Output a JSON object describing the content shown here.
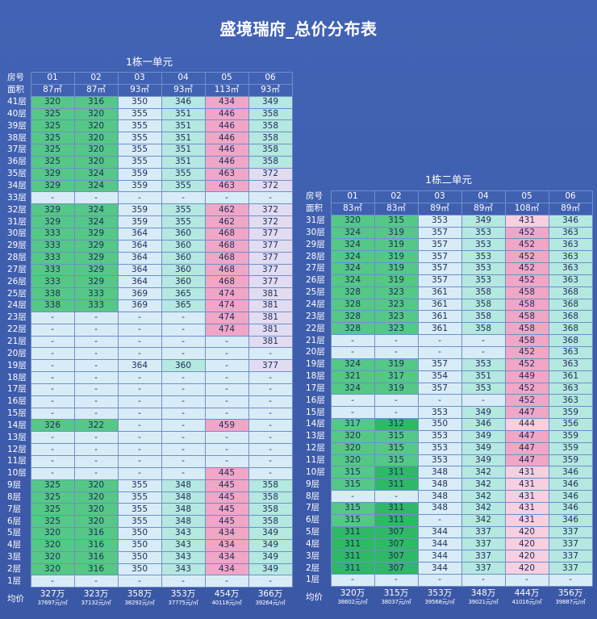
{
  "title": "盛境瑞府_总价分布表",
  "header_labels": {
    "room": "房号",
    "area": "面积",
    "avg": "均价"
  },
  "colors": {
    "background": "#3d5aa8",
    "green_dark": "#2fb866",
    "green": "#55c787",
    "green_light": "#9fe0c2",
    "teal_light": "#b4e8e0",
    "blue_light": "#d8ecf8",
    "pink": "#f0a6c6",
    "pink_light": "#f7cfe0",
    "lavender": "#e2dcf2",
    "empty": "#d8ecf8"
  },
  "chart_data": [
    {
      "type": "table",
      "title": "1栋一单元",
      "columns": [
        "01",
        "02",
        "03",
        "04",
        "05",
        "06"
      ],
      "areas": [
        "87㎡",
        "87㎡",
        "93㎡",
        "93㎡",
        "113㎡",
        "93㎡"
      ],
      "rows": [
        {
          "floor": "41层",
          "values": [
            "320",
            "316",
            "350",
            "346",
            "434",
            "349"
          ]
        },
        {
          "floor": "40层",
          "values": [
            "325",
            "320",
            "355",
            "351",
            "446",
            "358"
          ]
        },
        {
          "floor": "39层",
          "values": [
            "325",
            "320",
            "355",
            "351",
            "446",
            "358"
          ]
        },
        {
          "floor": "38层",
          "values": [
            "325",
            "320",
            "355",
            "351",
            "446",
            "358"
          ]
        },
        {
          "floor": "37层",
          "values": [
            "325",
            "320",
            "355",
            "351",
            "446",
            "358"
          ]
        },
        {
          "floor": "36层",
          "values": [
            "325",
            "320",
            "355",
            "351",
            "446",
            "358"
          ]
        },
        {
          "floor": "35层",
          "values": [
            "329",
            "324",
            "359",
            "355",
            "463",
            "372"
          ]
        },
        {
          "floor": "34层",
          "values": [
            "329",
            "324",
            "359",
            "355",
            "463",
            "372"
          ]
        },
        {
          "floor": "33层",
          "values": [
            "-",
            "-",
            "-",
            "-",
            "-",
            "-"
          ]
        },
        {
          "floor": "32层",
          "values": [
            "329",
            "324",
            "359",
            "355",
            "462",
            "372"
          ]
        },
        {
          "floor": "31层",
          "values": [
            "329",
            "324",
            "359",
            "355",
            "462",
            "372"
          ]
        },
        {
          "floor": "30层",
          "values": [
            "333",
            "329",
            "364",
            "360",
            "468",
            "377"
          ]
        },
        {
          "floor": "29层",
          "values": [
            "333",
            "329",
            "364",
            "360",
            "468",
            "377"
          ]
        },
        {
          "floor": "28层",
          "values": [
            "333",
            "329",
            "364",
            "360",
            "468",
            "377"
          ]
        },
        {
          "floor": "27层",
          "values": [
            "333",
            "329",
            "364",
            "360",
            "468",
            "377"
          ]
        },
        {
          "floor": "26层",
          "values": [
            "333",
            "329",
            "364",
            "360",
            "468",
            "377"
          ]
        },
        {
          "floor": "25层",
          "values": [
            "338",
            "333",
            "369",
            "365",
            "474",
            "381"
          ]
        },
        {
          "floor": "24层",
          "values": [
            "338",
            "333",
            "369",
            "365",
            "474",
            "381"
          ]
        },
        {
          "floor": "23层",
          "values": [
            "-",
            "-",
            "-",
            "-",
            "474",
            "381"
          ]
        },
        {
          "floor": "22层",
          "values": [
            "-",
            "-",
            "-",
            "-",
            "474",
            "381"
          ]
        },
        {
          "floor": "21层",
          "values": [
            "-",
            "-",
            "-",
            "-",
            "-",
            "381"
          ]
        },
        {
          "floor": "20层",
          "values": [
            "-",
            "-",
            "-",
            "-",
            "-",
            "-"
          ]
        },
        {
          "floor": "19层",
          "values": [
            "-",
            "-",
            "364",
            "360",
            "-",
            "377"
          ]
        },
        {
          "floor": "18层",
          "values": [
            "-",
            "-",
            "-",
            "-",
            "-",
            "-"
          ]
        },
        {
          "floor": "17层",
          "values": [
            "-",
            "-",
            "-",
            "-",
            "-",
            "-"
          ]
        },
        {
          "floor": "16层",
          "values": [
            "-",
            "-",
            "-",
            "-",
            "-",
            "-"
          ]
        },
        {
          "floor": "15层",
          "values": [
            "-",
            "-",
            "-",
            "-",
            "-",
            "-"
          ]
        },
        {
          "floor": "14层",
          "values": [
            "326",
            "322",
            "-",
            "-",
            "459",
            "-"
          ]
        },
        {
          "floor": "13层",
          "values": [
            "-",
            "-",
            "-",
            "-",
            "-",
            "-"
          ]
        },
        {
          "floor": "12层",
          "values": [
            "-",
            "-",
            "-",
            "-",
            "-",
            "-"
          ]
        },
        {
          "floor": "11层",
          "values": [
            "-",
            "-",
            "-",
            "-",
            "-",
            "-"
          ]
        },
        {
          "floor": "10层",
          "values": [
            "-",
            "-",
            "-",
            "-",
            "445",
            "-"
          ]
        },
        {
          "floor": "9层",
          "values": [
            "325",
            "320",
            "355",
            "348",
            "445",
            "358"
          ]
        },
        {
          "floor": "8层",
          "values": [
            "325",
            "320",
            "355",
            "348",
            "445",
            "358"
          ]
        },
        {
          "floor": "7层",
          "values": [
            "325",
            "320",
            "355",
            "348",
            "445",
            "358"
          ]
        },
        {
          "floor": "6层",
          "values": [
            "325",
            "320",
            "355",
            "348",
            "445",
            "358"
          ]
        },
        {
          "floor": "5层",
          "values": [
            "320",
            "316",
            "350",
            "343",
            "434",
            "349"
          ]
        },
        {
          "floor": "4层",
          "values": [
            "320",
            "316",
            "350",
            "343",
            "434",
            "349"
          ]
        },
        {
          "floor": "3层",
          "values": [
            "320",
            "316",
            "350",
            "343",
            "434",
            "349"
          ]
        },
        {
          "floor": "2层",
          "values": [
            "320",
            "316",
            "350",
            "343",
            "434",
            "349"
          ]
        },
        {
          "floor": "1层",
          "values": [
            "-",
            "-",
            "-",
            "-",
            "-",
            "-"
          ]
        }
      ],
      "averages": [
        {
          "price": "327万",
          "unit": "37697元/㎡"
        },
        {
          "price": "323万",
          "unit": "37132元/㎡"
        },
        {
          "price": "358万",
          "unit": "38292元/㎡"
        },
        {
          "price": "353万",
          "unit": "37775元/㎡"
        },
        {
          "price": "454万",
          "unit": "40118元/㎡"
        },
        {
          "price": "366万",
          "unit": "39264元/㎡"
        }
      ]
    },
    {
      "type": "table",
      "title": "1栋二单元",
      "columns": [
        "01",
        "02",
        "03",
        "04",
        "05",
        "06"
      ],
      "areas": [
        "83㎡",
        "83㎡",
        "89㎡",
        "89㎡",
        "108㎡",
        "89㎡"
      ],
      "rows": [
        {
          "floor": "31层",
          "values": [
            "320",
            "315",
            "353",
            "349",
            "431",
            "346"
          ]
        },
        {
          "floor": "30层",
          "values": [
            "324",
            "319",
            "357",
            "353",
            "452",
            "363"
          ]
        },
        {
          "floor": "29层",
          "values": [
            "324",
            "319",
            "357",
            "353",
            "452",
            "363"
          ]
        },
        {
          "floor": "28层",
          "values": [
            "324",
            "319",
            "357",
            "353",
            "452",
            "363"
          ]
        },
        {
          "floor": "27层",
          "values": [
            "324",
            "319",
            "357",
            "353",
            "452",
            "363"
          ]
        },
        {
          "floor": "26层",
          "values": [
            "324",
            "319",
            "357",
            "353",
            "452",
            "363"
          ]
        },
        {
          "floor": "25层",
          "values": [
            "328",
            "323",
            "361",
            "358",
            "458",
            "368"
          ]
        },
        {
          "floor": "24层",
          "values": [
            "328",
            "323",
            "361",
            "358",
            "458",
            "368"
          ]
        },
        {
          "floor": "23层",
          "values": [
            "328",
            "323",
            "361",
            "358",
            "458",
            "368"
          ]
        },
        {
          "floor": "22层",
          "values": [
            "328",
            "323",
            "361",
            "358",
            "458",
            "368"
          ]
        },
        {
          "floor": "21层",
          "values": [
            "-",
            "-",
            "-",
            "-",
            "458",
            "368"
          ]
        },
        {
          "floor": "20层",
          "values": [
            "-",
            "-",
            "-",
            "-",
            "452",
            "363"
          ]
        },
        {
          "floor": "19层",
          "values": [
            "324",
            "319",
            "357",
            "353",
            "452",
            "363"
          ]
        },
        {
          "floor": "18层",
          "values": [
            "321",
            "317",
            "354",
            "351",
            "449",
            "361"
          ]
        },
        {
          "floor": "17层",
          "values": [
            "324",
            "319",
            "357",
            "353",
            "452",
            "363"
          ]
        },
        {
          "floor": "16层",
          "values": [
            "-",
            "-",
            "-",
            "-",
            "452",
            "363"
          ]
        },
        {
          "floor": "15层",
          "values": [
            "-",
            "-",
            "353",
            "349",
            "447",
            "359"
          ]
        },
        {
          "floor": "14层",
          "values": [
            "317",
            "312",
            "350",
            "346",
            "444",
            "356"
          ]
        },
        {
          "floor": "13层",
          "values": [
            "320",
            "315",
            "353",
            "349",
            "447",
            "359"
          ]
        },
        {
          "floor": "12层",
          "values": [
            "320",
            "315",
            "353",
            "349",
            "447",
            "359"
          ]
        },
        {
          "floor": "11层",
          "values": [
            "320",
            "315",
            "353",
            "349",
            "447",
            "359"
          ]
        },
        {
          "floor": "10层",
          "values": [
            "315",
            "311",
            "348",
            "342",
            "431",
            "346"
          ]
        },
        {
          "floor": "9层",
          "values": [
            "315",
            "311",
            "348",
            "342",
            "431",
            "346"
          ]
        },
        {
          "floor": "8层",
          "values": [
            "-",
            "-",
            "348",
            "342",
            "431",
            "346"
          ]
        },
        {
          "floor": "7层",
          "values": [
            "315",
            "311",
            "348",
            "342",
            "431",
            "346"
          ]
        },
        {
          "floor": "6层",
          "values": [
            "315",
            "311",
            "-",
            "342",
            "431",
            "346"
          ]
        },
        {
          "floor": "5层",
          "values": [
            "311",
            "307",
            "344",
            "337",
            "420",
            "337"
          ]
        },
        {
          "floor": "4层",
          "values": [
            "311",
            "307",
            "344",
            "337",
            "420",
            "337"
          ]
        },
        {
          "floor": "3层",
          "values": [
            "311",
            "307",
            "344",
            "337",
            "420",
            "337"
          ]
        },
        {
          "floor": "2层",
          "values": [
            "311",
            "307",
            "344",
            "337",
            "420",
            "337"
          ]
        },
        {
          "floor": "1层",
          "values": [
            "-",
            "-",
            "-",
            "-",
            "-",
            "-"
          ]
        }
      ],
      "averages": [
        {
          "price": "320万",
          "unit": "38602元/㎡"
        },
        {
          "price": "315万",
          "unit": "38037元/㎡"
        },
        {
          "price": "353万",
          "unit": "39568元/㎡"
        },
        {
          "price": "348万",
          "unit": "39021元/㎡"
        },
        {
          "price": "444万",
          "unit": "41016元/㎡"
        },
        {
          "price": "356万",
          "unit": "39887元/㎡"
        }
      ]
    }
  ]
}
